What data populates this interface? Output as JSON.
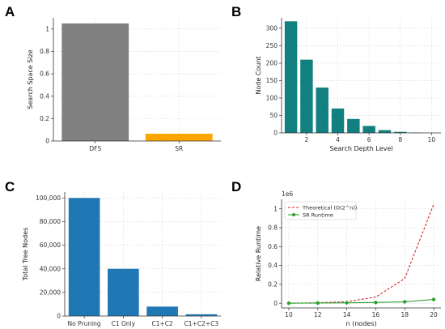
{
  "panels": [
    "A",
    "B",
    "C",
    "D"
  ],
  "chart_data": [
    {
      "type": "bar",
      "panel": "A",
      "categories": [
        "DFS",
        "SR"
      ],
      "values": [
        1.05,
        0.065
      ],
      "colors": [
        "#808080",
        "#FFA500"
      ],
      "ylabel": "Search Space Size",
      "ylim": [
        0,
        1.1
      ],
      "yticks": [
        0.0,
        0.2,
        0.4,
        0.6,
        0.8,
        1.0
      ],
      "grid": true
    },
    {
      "type": "bar",
      "panel": "B",
      "x": [
        1,
        2,
        3,
        4,
        5,
        6,
        7,
        8,
        9,
        10
      ],
      "values": [
        320,
        210,
        130,
        70,
        40,
        20,
        8,
        3,
        1,
        0
      ],
      "color": "#128080",
      "xlabel": "Search Depth Level",
      "ylabel": "Node Count",
      "xlim": [
        0.4,
        10.6
      ],
      "ylim": [
        0,
        330
      ],
      "xticks": [
        2,
        4,
        6,
        8,
        10
      ],
      "yticks": [
        0,
        50,
        100,
        150,
        200,
        250,
        300
      ],
      "grid": true
    },
    {
      "type": "bar",
      "panel": "C",
      "categories": [
        "No Pruning",
        "C1 Only",
        "C1+C2",
        "C1+C2+C3"
      ],
      "values": [
        100000,
        40000,
        8000,
        1500
      ],
      "color": "#1F77B4",
      "ylabel": "Total Tree Nodes",
      "ylim": [
        0,
        105000
      ],
      "yticks": [
        0,
        20000,
        40000,
        60000,
        80000,
        100000
      ],
      "ytick_labels": [
        "0",
        "20,000",
        "40,000",
        "60,000",
        "80,000",
        "100,000"
      ],
      "grid": true
    },
    {
      "type": "line",
      "panel": "D",
      "x": [
        10,
        12,
        14,
        16,
        18,
        20
      ],
      "series": [
        {
          "name": "Theoretical (O(2^n))",
          "values": [
            0.001,
            0.004,
            0.016,
            0.065,
            0.262,
            1.048
          ],
          "color": "#D62728",
          "style": "dashed"
        },
        {
          "name": "SR Runtime",
          "values": [
            0.0,
            0.002,
            0.004,
            0.007,
            0.015,
            0.04
          ],
          "color": "#2CA02C",
          "style": "solid-marker"
        }
      ],
      "xlabel": "n (nodes)",
      "ylabel": "Relative Runtime",
      "offset_label": "1e6",
      "xlim": [
        9.5,
        20.5
      ],
      "ylim": [
        -0.05,
        1.1
      ],
      "xticks": [
        10,
        12,
        14,
        16,
        18,
        20
      ],
      "yticks": [
        0.0,
        0.2,
        0.4,
        0.6,
        0.8,
        1.0
      ],
      "legend": "top-left",
      "grid": true
    }
  ]
}
